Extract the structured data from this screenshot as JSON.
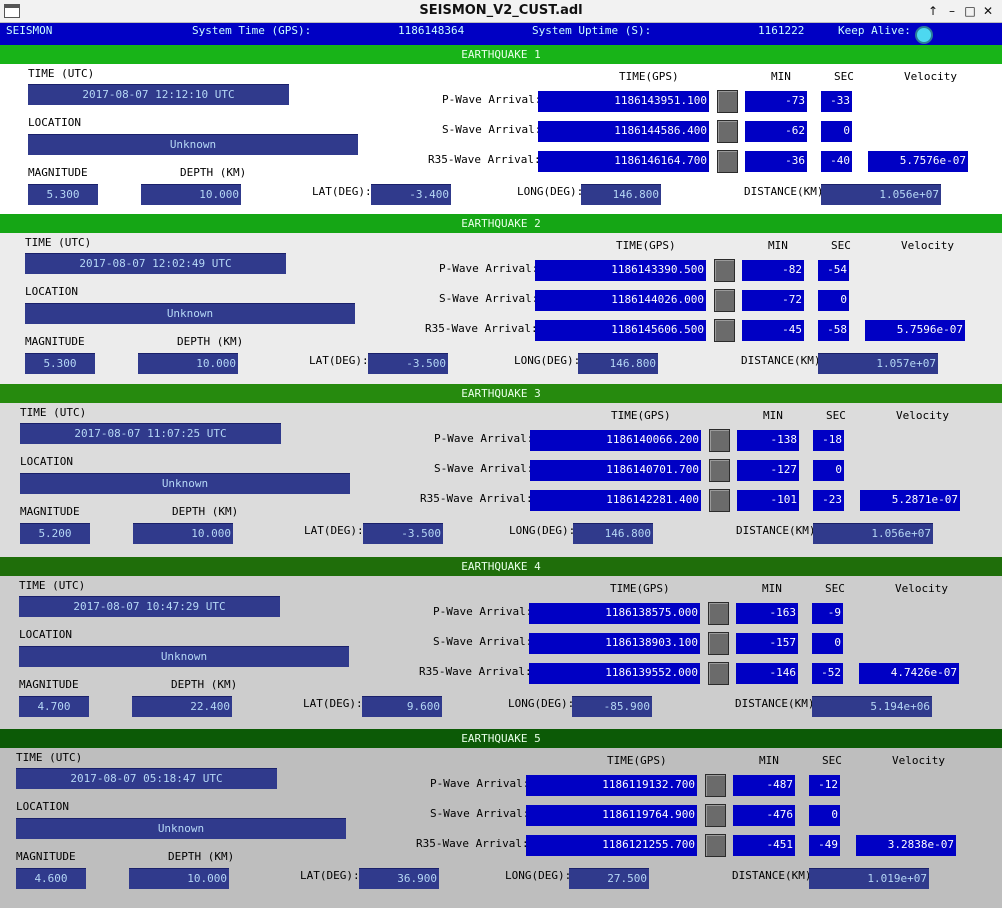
{
  "window": {
    "title": "SEISMON_V2_CUST.adl"
  },
  "topbar": {
    "app": "SEISMON",
    "system_time_label": "System Time (GPS):",
    "system_time_value": "1186148364",
    "uptime_label": "System Uptime (S):",
    "uptime_value": "1161222",
    "keep_alive_label": "Keep Alive:",
    "keep_alive_color": "#4dd8f0"
  },
  "labels": {
    "time_utc": "TIME (UTC)",
    "location": "LOCATION",
    "magnitude": "MAGNITUDE",
    "depth": "DEPTH (KM)",
    "lat": "LAT(DEG):",
    "long": "LONG(DEG):",
    "distance": "DISTANCE(KM):",
    "time_gps": "TIME(GPS)",
    "min": "MIN",
    "sec": "SEC",
    "velocity": "Velocity",
    "p_wave": "P-Wave Arrival:",
    "s_wave": "S-Wave Arrival:",
    "r35_wave": "R35-Wave Arrival:"
  },
  "colors": {
    "band_1": "#18b418",
    "band_2": "#15a615",
    "band_3": "#268a0e",
    "band_4": "#1f6e0a",
    "band_5": "#0c5a06",
    "bg_1": "#ffffff",
    "bg_2": "#ececec",
    "bg_3": "#dcdcdc",
    "bg_4": "#cdcdcd",
    "bg_5": "#bebebe"
  },
  "quakes": [
    {
      "title": "EARTHQUAKE 1",
      "time_utc": "2017-08-07 12:12:10 UTC",
      "location": "Unknown",
      "magnitude": "5.300",
      "depth": "10.000",
      "lat": "-3.400",
      "long": "146.800",
      "distance": "1.056e+07",
      "p": {
        "gps": "1186143951.100",
        "min": "-73",
        "sec": "-33"
      },
      "s": {
        "gps": "1186144586.400",
        "min": "-62",
        "sec": "0"
      },
      "r": {
        "gps": "1186146164.700",
        "min": "-36",
        "sec": "-40",
        "velocity": "5.7576e-07"
      }
    },
    {
      "title": "EARTHQUAKE 2",
      "time_utc": "2017-08-07 12:02:49 UTC",
      "location": "Unknown",
      "magnitude": "5.300",
      "depth": "10.000",
      "lat": "-3.500",
      "long": "146.800",
      "distance": "1.057e+07",
      "p": {
        "gps": "1186143390.500",
        "min": "-82",
        "sec": "-54"
      },
      "s": {
        "gps": "1186144026.000",
        "min": "-72",
        "sec": "0"
      },
      "r": {
        "gps": "1186145606.500",
        "min": "-45",
        "sec": "-58",
        "velocity": "5.7596e-07"
      }
    },
    {
      "title": "EARTHQUAKE 3",
      "time_utc": "2017-08-07 11:07:25 UTC",
      "location": "Unknown",
      "magnitude": "5.200",
      "depth": "10.000",
      "lat": "-3.500",
      "long": "146.800",
      "distance": "1.056e+07",
      "p": {
        "gps": "1186140066.200",
        "min": "-138",
        "sec": "-18"
      },
      "s": {
        "gps": "1186140701.700",
        "min": "-127",
        "sec": "0"
      },
      "r": {
        "gps": "1186142281.400",
        "min": "-101",
        "sec": "-23",
        "velocity": "5.2871e-07"
      }
    },
    {
      "title": "EARTHQUAKE 4",
      "time_utc": "2017-08-07 10:47:29 UTC",
      "location": "Unknown",
      "magnitude": "4.700",
      "depth": "22.400",
      "lat": "9.600",
      "long": "-85.900",
      "distance": "5.194e+06",
      "p": {
        "gps": "1186138575.000",
        "min": "-163",
        "sec": "-9"
      },
      "s": {
        "gps": "1186138903.100",
        "min": "-157",
        "sec": "0"
      },
      "r": {
        "gps": "1186139552.000",
        "min": "-146",
        "sec": "-52",
        "velocity": "4.7426e-07"
      }
    },
    {
      "title": "EARTHQUAKE 5",
      "time_utc": "2017-08-07 05:18:47 UTC",
      "location": "Unknown",
      "magnitude": "4.600",
      "depth": "10.000",
      "lat": "36.900",
      "long": "27.500",
      "distance": "1.019e+07",
      "p": {
        "gps": "1186119132.700",
        "min": "-487",
        "sec": "-12"
      },
      "s": {
        "gps": "1186119764.900",
        "min": "-476",
        "sec": "0"
      },
      "r": {
        "gps": "1186121255.700",
        "min": "-451",
        "sec": "-49",
        "velocity": "3.2838e-07"
      }
    }
  ]
}
